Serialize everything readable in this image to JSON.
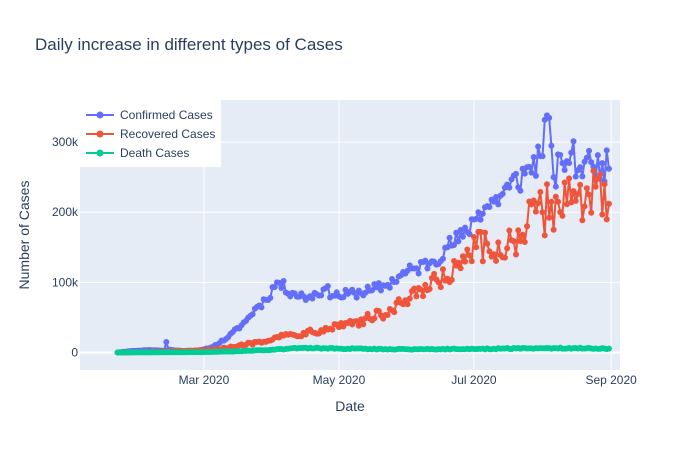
{
  "chart_data": {
    "type": "line",
    "title": "Daily increase in different types of Cases",
    "xlabel": "Date",
    "ylabel": "Number of Cases",
    "x_start": "2020-01-22",
    "x_range": [
      "2020-01-05",
      "2020-09-05"
    ],
    "ylim": [
      -25000,
      360000
    ],
    "x_ticks": [
      {
        "date": "2020-03-01",
        "label": "Mar 2020"
      },
      {
        "date": "2020-05-01",
        "label": "May 2020"
      },
      {
        "date": "2020-07-01",
        "label": "Jul 2020"
      },
      {
        "date": "2020-09-01",
        "label": "Sep 2020"
      }
    ],
    "y_ticks": [
      {
        "value": 0,
        "label": "0"
      },
      {
        "value": 100000,
        "label": "100k"
      },
      {
        "value": 200000,
        "label": "200k"
      },
      {
        "value": 300000,
        "label": "300k"
      }
    ],
    "grid": true,
    "legend_position": "top-left",
    "colors": {
      "plot_bg": "#e5ecf6",
      "grid": "#ffffff",
      "text": "#2a3f5f"
    },
    "series": [
      {
        "name": "Confirmed Cases",
        "color": "#636efa",
        "anchors": [
          [
            "2020-01-22",
            0
          ],
          [
            "2020-01-28",
            2000
          ],
          [
            "2020-02-05",
            3500
          ],
          [
            "2020-02-12",
            2500
          ],
          [
            "2020-02-13",
            15000
          ],
          [
            "2020-02-14",
            4000
          ],
          [
            "2020-02-22",
            1500
          ],
          [
            "2020-02-28",
            2500
          ],
          [
            "2020-03-05",
            8000
          ],
          [
            "2020-03-12",
            22000
          ],
          [
            "2020-03-20",
            45000
          ],
          [
            "2020-03-25",
            65000
          ],
          [
            "2020-03-29",
            75000
          ],
          [
            "2020-04-03",
            100000
          ],
          [
            "2020-04-10",
            85000
          ],
          [
            "2020-04-17",
            78000
          ],
          [
            "2020-04-24",
            90000
          ],
          [
            "2020-05-01",
            80000
          ],
          [
            "2020-05-08",
            85000
          ],
          [
            "2020-05-15",
            88000
          ],
          [
            "2020-05-22",
            95000
          ],
          [
            "2020-05-29",
            110000
          ],
          [
            "2020-06-05",
            120000
          ],
          [
            "2020-06-12",
            130000
          ],
          [
            "2020-06-19",
            150000
          ],
          [
            "2020-06-26",
            165000
          ],
          [
            "2020-07-03",
            200000
          ],
          [
            "2020-07-10",
            215000
          ],
          [
            "2020-07-17",
            235000
          ],
          [
            "2020-07-24",
            255000
          ],
          [
            "2020-07-31",
            280000
          ],
          [
            "2020-08-03",
            338000
          ],
          [
            "2020-08-06",
            250000
          ],
          [
            "2020-08-10",
            270000
          ],
          [
            "2020-08-14",
            285000
          ],
          [
            "2020-08-17",
            260000
          ],
          [
            "2020-08-20",
            272000
          ],
          [
            "2020-08-24",
            265000
          ],
          [
            "2020-08-28",
            270000
          ],
          [
            "2020-08-31",
            262000
          ]
        ]
      },
      {
        "name": "Recovered Cases",
        "color": "#ef553b",
        "anchors": [
          [
            "2020-01-22",
            0
          ],
          [
            "2020-02-05",
            500
          ],
          [
            "2020-02-15",
            1500
          ],
          [
            "2020-02-25",
            2500
          ],
          [
            "2020-03-05",
            4000
          ],
          [
            "2020-03-15",
            8000
          ],
          [
            "2020-03-25",
            15000
          ],
          [
            "2020-04-03",
            22000
          ],
          [
            "2020-04-15",
            28000
          ],
          [
            "2020-04-25",
            35000
          ],
          [
            "2020-05-05",
            42000
          ],
          [
            "2020-05-15",
            48000
          ],
          [
            "2020-05-25",
            60000
          ],
          [
            "2020-06-05",
            80000
          ],
          [
            "2020-06-15",
            100000
          ],
          [
            "2020-06-25",
            120000
          ],
          [
            "2020-07-02",
            150000
          ],
          [
            "2020-07-10",
            140000
          ],
          [
            "2020-07-18",
            160000
          ],
          [
            "2020-07-25",
            180000
          ],
          [
            "2020-08-01",
            200000
          ],
          [
            "2020-08-08",
            215000
          ],
          [
            "2020-08-15",
            230000
          ],
          [
            "2020-08-22",
            225000
          ],
          [
            "2020-08-31",
            212000
          ]
        ]
      },
      {
        "name": "Death Cases",
        "color": "#00cc96",
        "anchors": [
          [
            "2020-01-22",
            0
          ],
          [
            "2020-02-10",
            200
          ],
          [
            "2020-03-01",
            500
          ],
          [
            "2020-03-15",
            1500
          ],
          [
            "2020-04-01",
            4000
          ],
          [
            "2020-04-15",
            6500
          ],
          [
            "2020-05-01",
            5500
          ],
          [
            "2020-05-15",
            5000
          ],
          [
            "2020-06-01",
            4500
          ],
          [
            "2020-06-15",
            4800
          ],
          [
            "2020-07-01",
            5000
          ],
          [
            "2020-07-15",
            5500
          ],
          [
            "2020-08-01",
            6000
          ],
          [
            "2020-08-15",
            6200
          ],
          [
            "2020-08-31",
            5500
          ]
        ]
      }
    ]
  }
}
